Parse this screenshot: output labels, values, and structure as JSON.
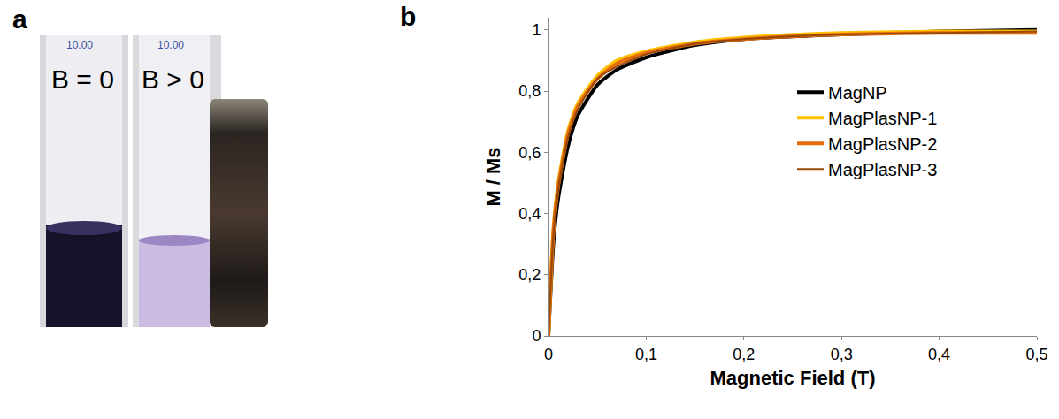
{
  "panel_a": {
    "letter": "a",
    "cuvettes": [
      {
        "volume_mark": "10.00",
        "label": "B = 0"
      },
      {
        "volume_mark": "10.00",
        "label": "B > 0"
      }
    ]
  },
  "panel_b": {
    "letter": "b"
  },
  "chart_data": {
    "type": "line",
    "x_label": "Magnetic Field (T)",
    "y_label": "M / Ms",
    "x": [
      0,
      0.005,
      0.01,
      0.02,
      0.03,
      0.05,
      0.07,
      0.1,
      0.15,
      0.2,
      0.3,
      0.4,
      0.5
    ],
    "series": [
      {
        "name": "MagNP",
        "color": "#000000",
        "values": [
          0,
          0.3,
          0.45,
          0.62,
          0.72,
          0.82,
          0.87,
          0.91,
          0.95,
          0.97,
          0.985,
          0.995,
          1.0
        ]
      },
      {
        "name": "MagPlasNP-1",
        "color": "#ffc000",
        "values": [
          0,
          0.35,
          0.5,
          0.67,
          0.76,
          0.85,
          0.9,
          0.93,
          0.96,
          0.975,
          0.99,
          0.995,
          0.995
        ]
      },
      {
        "name": "MagPlasNP-2",
        "color": "#e46c0a",
        "values": [
          0,
          0.34,
          0.49,
          0.66,
          0.75,
          0.84,
          0.89,
          0.925,
          0.955,
          0.97,
          0.985,
          0.99,
          0.99
        ]
      },
      {
        "name": "MagPlasNP-3",
        "color": "#984807",
        "values": [
          0,
          0.33,
          0.48,
          0.65,
          0.74,
          0.84,
          0.88,
          0.92,
          0.955,
          0.97,
          0.985,
          0.99,
          0.995
        ]
      }
    ],
    "xlim": [
      0,
      0.5
    ],
    "ylim": [
      0,
      1.04
    ],
    "xticks": [
      0,
      {
        "value": 0.1,
        "label": "0,1"
      },
      {
        "value": 0.2,
        "label": "0,2"
      },
      {
        "value": 0.3,
        "label": "0,3"
      },
      {
        "value": 0.4,
        "label": "0,4"
      },
      {
        "value": 0.5,
        "label": "0,5"
      }
    ],
    "yticks": [
      0,
      {
        "value": 0.2,
        "label": "0,2"
      },
      {
        "value": 0.4,
        "label": "0,4"
      },
      {
        "value": 0.6,
        "label": "0,6"
      },
      {
        "value": 0.8,
        "label": "0,8"
      },
      1
    ],
    "grid": false,
    "legend": "right"
  }
}
